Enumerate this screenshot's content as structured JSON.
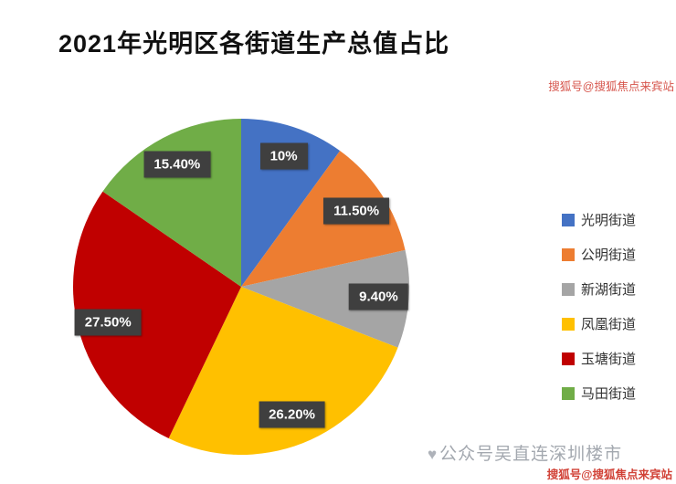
{
  "title": "2021年光明区各街道生产总值占比",
  "chart_data": {
    "type": "pie",
    "title": "2021年光明区各街道生产总值占比",
    "start_angle_deg": 0,
    "direction": "clockwise",
    "legend_position": "right",
    "label_style": "dark-box-white-text",
    "slices": [
      {
        "label": "光明街道",
        "value": 10.0,
        "display": "10%",
        "color": "#4472C4"
      },
      {
        "label": "公明街道",
        "value": 11.5,
        "display": "11.50%",
        "color": "#ED7D31"
      },
      {
        "label": "新湖街道",
        "value": 9.4,
        "display": "9.40%",
        "color": "#A5A5A5"
      },
      {
        "label": "凤凰街道",
        "value": 26.2,
        "display": "26.20%",
        "color": "#FFC000"
      },
      {
        "label": "玉塘街道",
        "value": 27.5,
        "display": "27.50%",
        "color": "#C00000"
      },
      {
        "label": "马田街道",
        "value": 15.4,
        "display": "15.40%",
        "color": "#70AD47"
      }
    ]
  },
  "watermarks": {
    "center_icon": "♥",
    "center_text": "公众号吴直连深圳楼市",
    "top_right": "搜狐号@搜狐焦点来宾站",
    "bottom_right": "搜狐号@搜狐焦点来宾站"
  }
}
